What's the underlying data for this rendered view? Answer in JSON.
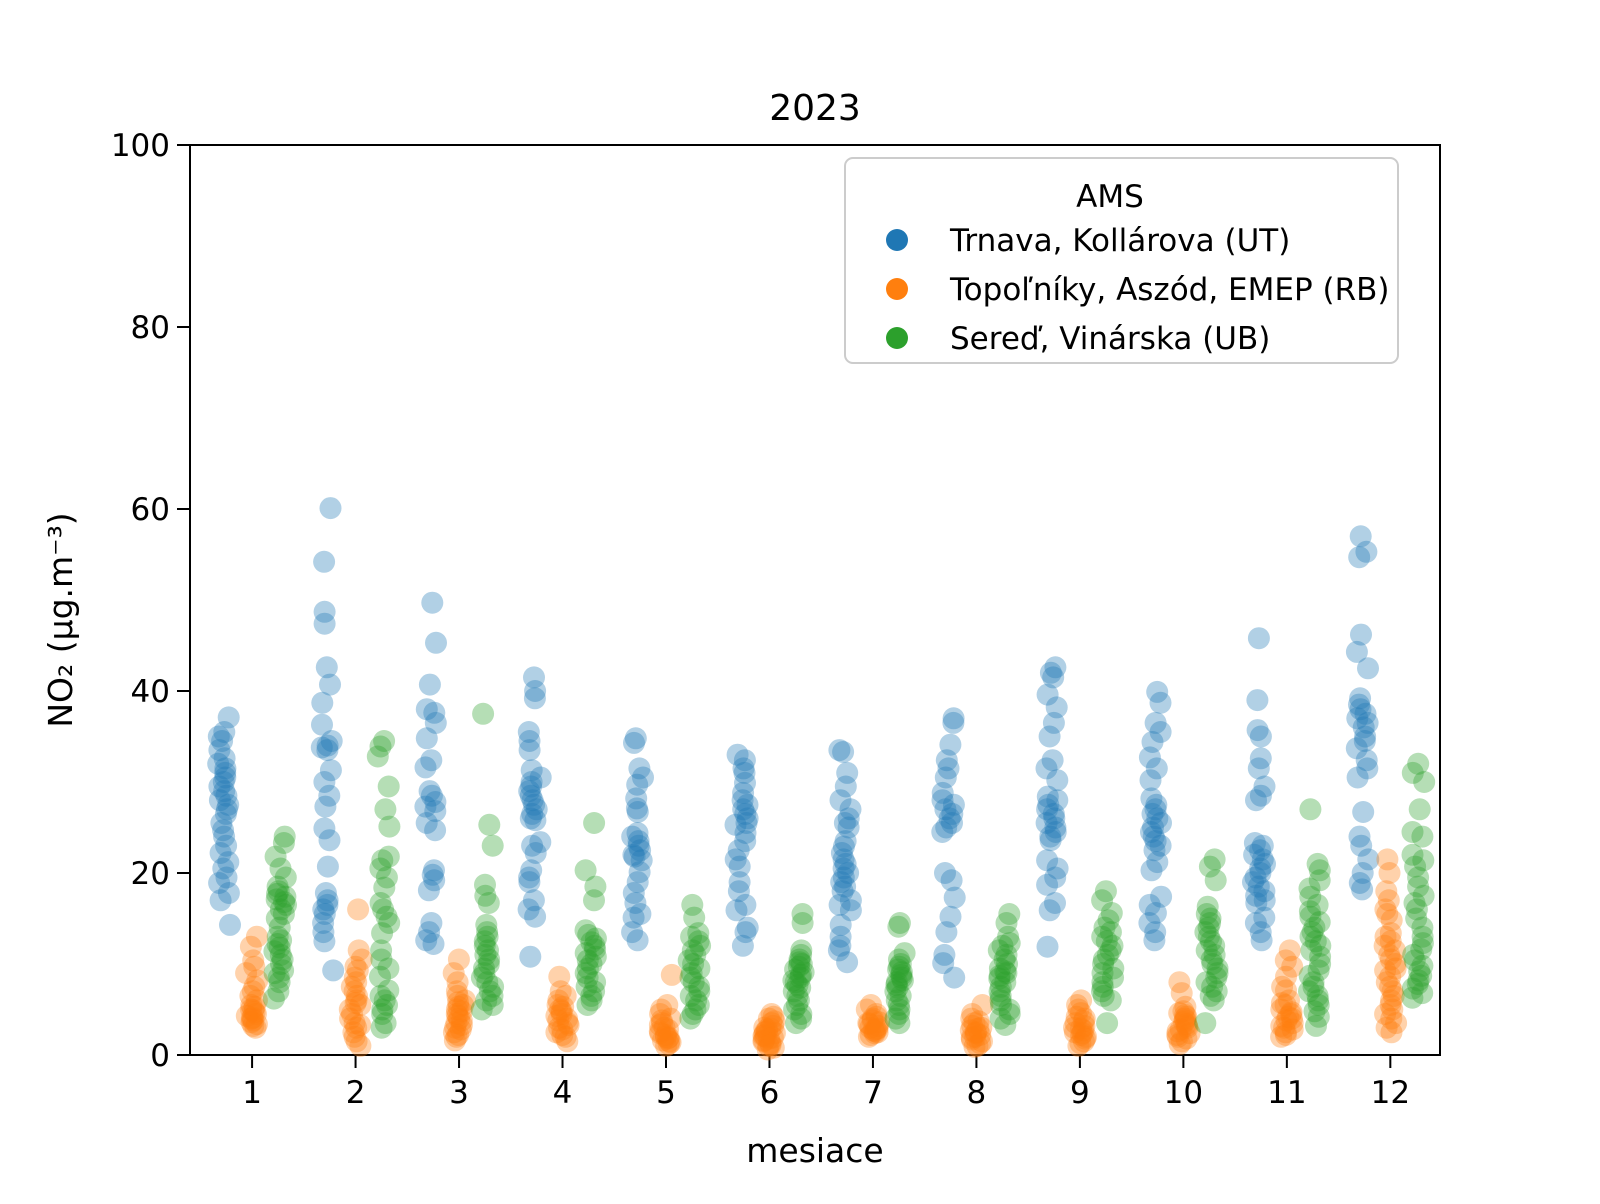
{
  "figure": {
    "background": "#ffffff"
  },
  "chart_data": {
    "type": "scatter",
    "title": "2023",
    "xlabel": "mesiace",
    "ylabel": "NO₂  (μg.m⁻³)",
    "xlim": [
      0.4,
      12.48
    ],
    "ylim": [
      0,
      100
    ],
    "x_ticks": [
      1,
      2,
      3,
      4,
      5,
      6,
      7,
      8,
      9,
      10,
      11,
      12
    ],
    "y_ticks": [
      0,
      20,
      40,
      60,
      80,
      100
    ],
    "grid": false,
    "marker": {
      "radius": 11,
      "opacity": 0.35
    },
    "legend": {
      "title": "AMS",
      "position": "upper right",
      "entries": [
        {
          "label": "Trnava, Kollárova (UT)",
          "color": "#1f77b4"
        },
        {
          "label": "Topoľníky, Aszód, EMEP (RB)",
          "color": "#ff7f0e"
        },
        {
          "label": "Sereď, Vinárska (UB)",
          "color": "#2ca02c"
        }
      ]
    },
    "series": [
      {
        "name": "Trnava, Kollárova (UT)",
        "color": "#1f77b4",
        "x_offset": -0.27,
        "values_by_month": {
          "1": [
            37.1,
            35.5,
            35,
            34.5,
            33.5,
            32.6,
            32,
            31.5,
            31,
            30.5,
            30,
            29.5,
            29,
            28.5,
            28,
            27.5,
            27,
            26.5,
            25.5,
            24.7,
            24,
            23,
            22.2,
            21.2,
            20.5,
            19.5,
            18.9,
            17.8,
            17,
            14.3
          ],
          "2": [
            60.1,
            54.2,
            48.7,
            47.4,
            42.6,
            40.7,
            38.7,
            36.3,
            34.5,
            34,
            33.8,
            33.5,
            31.3,
            30,
            28.5,
            27.3,
            24.9,
            23.6,
            20.7,
            17.8,
            17,
            16.5,
            16,
            15.5,
            14.5,
            13.5,
            12.5,
            9.3
          ],
          "3": [
            49.7,
            45.3,
            40.7,
            38,
            37.6,
            36.5,
            34.8,
            32.4,
            31.6,
            29,
            28.5,
            27.8,
            27.3,
            26.8,
            25.5,
            24.7,
            20.3,
            19.8,
            19.2,
            18.1,
            14.5,
            13.5,
            12.6,
            12.2
          ],
          "4": [
            41.5,
            40,
            39.2,
            35.5,
            34.5,
            33.5,
            31.3,
            30.5,
            30,
            29.5,
            29,
            28.5,
            28,
            27.5,
            27,
            26.5,
            26,
            25.8,
            23.4,
            23,
            22.2,
            20.3,
            19.5,
            19,
            17,
            16,
            15.2,
            10.8
          ],
          "5": [
            34.8,
            34.3,
            31.5,
            30.5,
            29.7,
            28.2,
            27.1,
            26.7,
            24.4,
            24,
            23.5,
            23,
            22.5,
            22,
            21.8,
            21.4,
            20.1,
            19,
            17.8,
            16.7,
            15.5,
            15.1,
            13.5,
            12.6
          ],
          "6": [
            33,
            32.4,
            31.5,
            31,
            29.9,
            28.8,
            28,
            27.5,
            27,
            26.5,
            26,
            25.5,
            25.3,
            24.4,
            23.5,
            22.5,
            21.5,
            20.7,
            19,
            18,
            16.5,
            15.9,
            14,
            13.5,
            12
          ],
          "7": [
            33.5,
            33.3,
            31,
            29.5,
            28,
            27,
            26,
            25.5,
            25,
            23.5,
            22.9,
            22.2,
            21.5,
            21,
            20.5,
            20,
            19.5,
            19,
            18.5,
            18,
            17,
            16.5,
            15.9,
            14.3,
            13,
            12,
            11.5,
            10.2
          ],
          "8": [
            37,
            36.5,
            34.1,
            32.4,
            31.5,
            30.5,
            28.8,
            28,
            27.5,
            27,
            26.5,
            26,
            25.5,
            25,
            24.5,
            20,
            19.2,
            17.3,
            15.2,
            13.5,
            11,
            10.1,
            8.5
          ],
          "9": [
            42.6,
            42,
            41.5,
            39.6,
            38.2,
            36.5,
            35,
            32.4,
            31.5,
            30.2,
            28.4,
            28,
            27.5,
            27,
            26.5,
            26,
            25.5,
            25,
            24.5,
            24,
            23.6,
            21.4,
            20.5,
            19.5,
            18.7,
            16.7,
            15.9,
            11.9
          ],
          "10": [
            39.9,
            38.7,
            36.5,
            35.5,
            34.4,
            32.7,
            31.5,
            30.2,
            28.2,
            27.5,
            27,
            26.5,
            26,
            25.5,
            25,
            24.5,
            24,
            23.5,
            23,
            22.5,
            21.2,
            20.3,
            17.4,
            16.5,
            15.6,
            14.5,
            13.5,
            12.6
          ],
          "11": [
            45.8,
            39,
            35.7,
            35,
            32.6,
            31.5,
            29.5,
            28.5,
            28,
            23.3,
            23,
            22.5,
            22,
            21.5,
            21,
            20.5,
            20,
            19.5,
            19,
            18.5,
            18,
            17.5,
            17,
            16.7,
            15.1,
            14.5,
            13.5,
            12.6
          ],
          "12": [
            57,
            55.3,
            54.7,
            46.2,
            44.3,
            42.5,
            39.2,
            38.5,
            38,
            37.5,
            37,
            36.5,
            36,
            35,
            34.5,
            33.7,
            32.4,
            31.5,
            30.5,
            26.7,
            24,
            23,
            21.5,
            20,
            18.9,
            18.2
          ]
        }
      },
      {
        "name": "Topoľníky, Aszód, EMEP (RB)",
        "color": "#ff7f0e",
        "x_offset": 0,
        "values_by_month": {
          "1": [
            13,
            11.9,
            10.4,
            9.7,
            9,
            8.2,
            7.5,
            7,
            6.5,
            6,
            5.5,
            5.3,
            5,
            4.9,
            4.7,
            4.5,
            4.3,
            4.1,
            4,
            3.8,
            3.6,
            3.4,
            3.2,
            3
          ],
          "2": [
            16,
            11.5,
            10.5,
            9.7,
            9.3,
            8.5,
            8,
            7.5,
            7,
            6.5,
            6,
            5.7,
            5.5,
            5,
            4.5,
            4,
            3.5,
            3.3,
            3,
            2.5,
            2,
            1.5,
            1
          ],
          "3": [
            10.5,
            9,
            8,
            7,
            6.5,
            6,
            5.8,
            5.5,
            5.3,
            5,
            4.8,
            4.5,
            4.3,
            4,
            3.8,
            3.5,
            3.3,
            3,
            2.8,
            2.5,
            2.2,
            2,
            1.6
          ],
          "4": [
            8.6,
            7,
            6.5,
            6,
            5.5,
            5.3,
            5,
            4.8,
            4.5,
            4.3,
            4,
            3.8,
            3.5,
            3.3,
            3,
            2.8,
            2.5,
            2.2,
            2,
            1.5
          ],
          "5": [
            8.8,
            5.5,
            5,
            4.5,
            4,
            3.8,
            3.5,
            3.3,
            3,
            2.8,
            2.6,
            2.4,
            2.2,
            2,
            1.9,
            1.8,
            1.6,
            1.5,
            1.4,
            1.2,
            1
          ],
          "6": [
            4.5,
            4.2,
            4,
            3.7,
            3.5,
            3.2,
            3,
            2.9,
            2.8,
            2.6,
            2.5,
            2.4,
            2.2,
            2.1,
            2,
            1.9,
            1.8,
            1.6,
            1.5,
            1.3,
            1.1,
            1,
            0.8,
            0.6
          ],
          "7": [
            5.5,
            5,
            4.5,
            4.2,
            4,
            3.8,
            3.6,
            3.5,
            3.4,
            3.2,
            3,
            2.9,
            2.8,
            2.7,
            2.6,
            2.5,
            2.4,
            2.2,
            2
          ],
          "8": [
            5.5,
            4.5,
            4,
            3.7,
            3.5,
            3.2,
            3,
            2.9,
            2.7,
            2.5,
            2.4,
            2.2,
            2,
            1.9,
            1.7,
            1.5,
            1.3,
            1,
            0.9
          ],
          "9": [
            6,
            5.5,
            5,
            4.6,
            4.2,
            4,
            3.7,
            3.5,
            3.2,
            3,
            2.9,
            2.7,
            2.5,
            2.4,
            2.2,
            2,
            1.8,
            1.5,
            1.3,
            1
          ],
          "10": [
            8,
            6.8,
            5.3,
            4.8,
            4.6,
            4.4,
            4.2,
            4,
            3.8,
            3.6,
            3.4,
            3.2,
            3,
            2.8,
            2.6,
            2.4,
            2.2,
            2,
            1.8,
            1.5,
            1.2
          ],
          "11": [
            11.5,
            10.4,
            9.7,
            8.6,
            7.5,
            7.1,
            6,
            5.7,
            5.5,
            5,
            4.7,
            4.5,
            4.2,
            4,
            3.8,
            3.5,
            3.2,
            3,
            2.8,
            2.5,
            2.2,
            2
          ],
          "12": [
            21.5,
            20,
            18,
            17,
            16,
            15.5,
            14.8,
            13.4,
            13,
            12.5,
            12,
            11.5,
            11,
            10.5,
            10,
            9.5,
            9.3,
            8.6,
            8,
            7.5,
            7,
            6.5,
            6,
            5.5,
            5,
            4.5,
            4,
            3.5,
            3,
            2.5
          ]
        }
      },
      {
        "name": "Sereď, Vinárska (UB)",
        "color": "#2ca02c",
        "x_offset": 0.27,
        "values_by_month": {
          "1": [
            24,
            23.3,
            21.8,
            20.5,
            19.5,
            18.5,
            18,
            17.7,
            17.4,
            17.1,
            16.8,
            16.5,
            16,
            15.5,
            15,
            14,
            13,
            12.6,
            12.2,
            11.8,
            11.4,
            11,
            10.5,
            10,
            9.3,
            9,
            8.5,
            8,
            7,
            6.2
          ],
          "2": [
            34.5,
            33.9,
            32.8,
            29.5,
            27,
            25.1,
            21.8,
            21.4,
            20.5,
            19.5,
            18.4,
            16.7,
            16,
            15.2,
            14.5,
            13.4,
            11.5,
            10.5,
            9.5,
            8.6,
            7.1,
            6.5,
            6,
            5.5,
            5,
            4.5,
            3.5,
            3
          ],
          "3": [
            37.5,
            25.3,
            23,
            18.7,
            17.5,
            16.7,
            14.3,
            13.5,
            13,
            12.5,
            12,
            11.5,
            11,
            10.5,
            10,
            9.5,
            9,
            8.5,
            8,
            7.5,
            7,
            6.5,
            6,
            5.5,
            5
          ],
          "4": [
            25.5,
            20.3,
            18.5,
            17,
            13.7,
            13.2,
            12.8,
            12.4,
            12,
            11.6,
            11.2,
            10.8,
            10.4,
            10,
            9.5,
            9,
            8.5,
            8,
            7.5,
            7,
            6.5,
            6,
            5.5
          ],
          "5": [
            16.5,
            15.1,
            13.4,
            13,
            12.5,
            12,
            11.5,
            11,
            10.4,
            10,
            9.5,
            9,
            8.5,
            8,
            7.5,
            7,
            6.5,
            6,
            5.5,
            5,
            4.5,
            4
          ],
          "6": [
            15.5,
            14.5,
            11.5,
            11,
            10.5,
            10.2,
            10,
            9.7,
            9.4,
            9.1,
            8.8,
            8.5,
            8.2,
            8,
            7.7,
            7.4,
            7,
            6.5,
            6,
            5.5,
            5,
            4.5,
            4,
            3.5
          ],
          "7": [
            14.5,
            14.1,
            11.2,
            10.5,
            10,
            9.7,
            9.4,
            9.1,
            8.8,
            8.5,
            8.2,
            8,
            7.7,
            7.4,
            7,
            6.5,
            6,
            5.5,
            5,
            4.5,
            4,
            3.5
          ],
          "8": [
            15.5,
            14.5,
            13,
            12.3,
            12,
            11.5,
            11,
            10.5,
            10,
            9.5,
            9.2,
            9,
            8.7,
            8.4,
            8,
            7.5,
            7,
            6.5,
            6,
            5.5,
            5,
            4.5,
            4,
            3.3
          ],
          "9": [
            18,
            17,
            15.6,
            14.8,
            14,
            13.5,
            13,
            12.5,
            12,
            11.5,
            11,
            10.5,
            10,
            9.5,
            9,
            8.5,
            8,
            7.5,
            7,
            6.5,
            6,
            3.5
          ],
          "10": [
            21.5,
            20.7,
            19.2,
            16.3,
            15.5,
            15,
            14.5,
            14,
            13.5,
            13,
            12.5,
            12,
            11.5,
            11,
            10.5,
            10,
            9.5,
            9,
            8.5,
            8,
            7.5,
            7,
            6.5,
            6,
            3.5
          ],
          "11": [
            27,
            21,
            20.3,
            19.2,
            18.3,
            17.4,
            16.5,
            15.8,
            15.2,
            14.6,
            14,
            13.5,
            13,
            12.5,
            12,
            11.5,
            10.8,
            10,
            9.3,
            8.7,
            8,
            7.5,
            7,
            6.5,
            6,
            5.5,
            4.8,
            4.2,
            3.2
          ],
          "12": [
            32,
            31,
            30,
            27,
            24.5,
            24,
            22,
            21.4,
            20.7,
            19.5,
            18.5,
            17.5,
            16.7,
            16,
            15,
            14,
            13,
            12.3,
            11.6,
            11,
            10.4,
            9.8,
            9.2,
            8.7,
            8.2,
            7.8,
            7.3,
            6.8,
            6.3
          ]
        }
      }
    ]
  }
}
